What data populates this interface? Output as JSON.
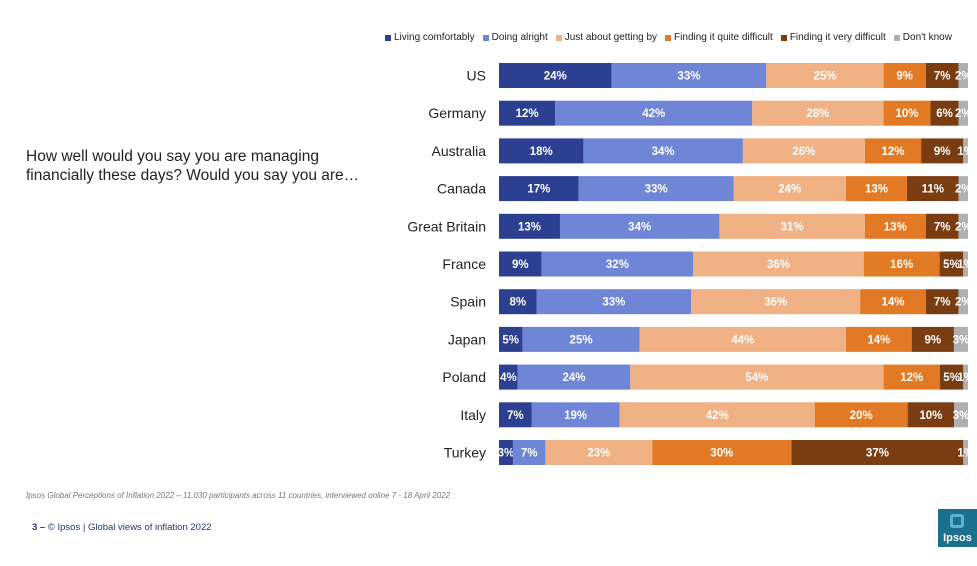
{
  "question": "How well would you say you are managing financially these days? Would you say you are…",
  "footnote": "Ipsos Global Perceptions of Inflation 2022 – 11,030 participants across 11 countries, interviewed online 7 - 18 April 2022",
  "footer": {
    "page": "3 –",
    "text": "© Ipsos | Global views of inflation 2022"
  },
  "logo_text": "Ipsos",
  "colors": {
    "living_comfortably": "#2c3f91",
    "doing_alright": "#6f86d6",
    "just_about": "#f0b184",
    "quite_difficult": "#e27a25",
    "very_difficult": "#7a3d12",
    "dont_know": "#b0b0b0"
  },
  "chart_data": {
    "type": "bar",
    "orientation": "horizontal",
    "stacked": true,
    "xlim": [
      0,
      100
    ],
    "unit": "%",
    "legend_position": "top",
    "categories": [
      "US",
      "Germany",
      "Australia",
      "Canada",
      "Great Britain",
      "France",
      "Spain",
      "Japan",
      "Poland",
      "Italy",
      "Turkey"
    ],
    "series": [
      {
        "name": "Living comfortably",
        "values": [
          24,
          12,
          18,
          17,
          13,
          9,
          8,
          5,
          4,
          7,
          3
        ]
      },
      {
        "name": "Doing alright",
        "values": [
          33,
          42,
          34,
          33,
          34,
          32,
          33,
          25,
          24,
          19,
          7
        ]
      },
      {
        "name": "Just about getting by",
        "values": [
          25,
          28,
          26,
          24,
          31,
          36,
          36,
          44,
          54,
          42,
          23
        ]
      },
      {
        "name": "Finding it quite difficult",
        "values": [
          9,
          10,
          12,
          13,
          13,
          16,
          14,
          14,
          12,
          20,
          30
        ]
      },
      {
        "name": "Finding it very difficult",
        "values": [
          7,
          6,
          9,
          11,
          7,
          5,
          7,
          9,
          5,
          10,
          37
        ]
      },
      {
        "name": "Don't know",
        "values": [
          2,
          2,
          1,
          2,
          2,
          1,
          2,
          3,
          1,
          3,
          1
        ]
      }
    ]
  }
}
